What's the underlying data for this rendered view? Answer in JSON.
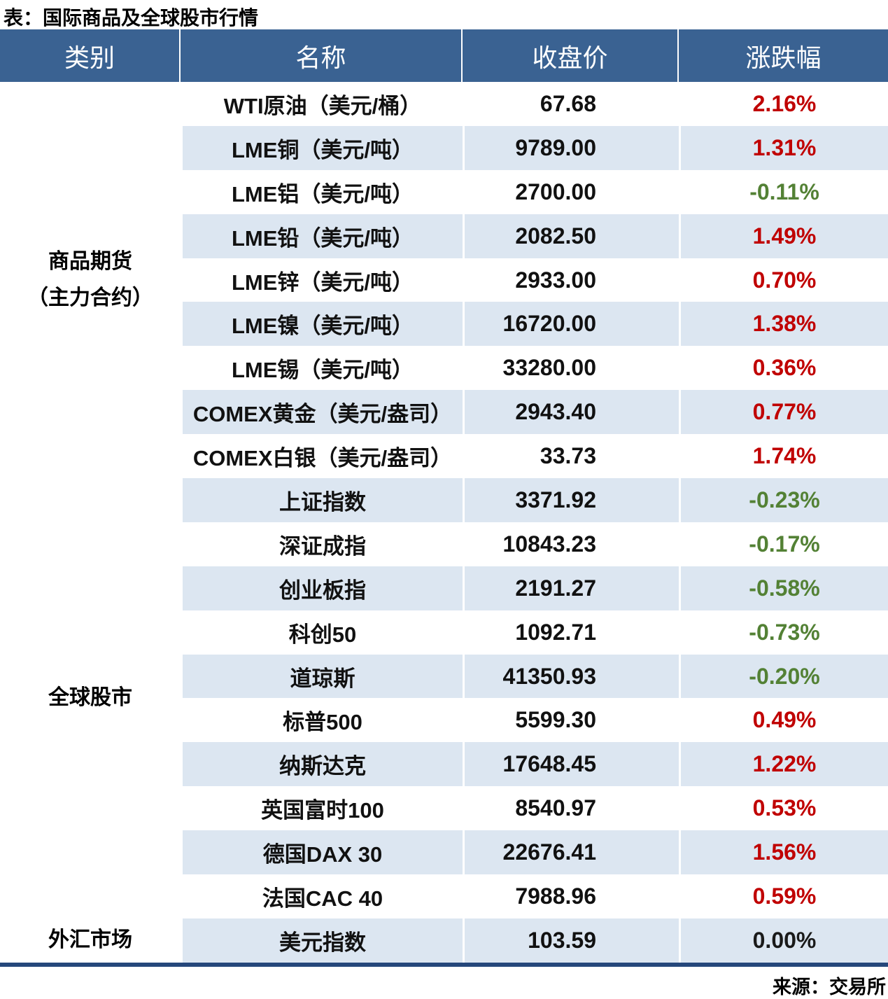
{
  "page": {
    "title": "表：国际商品及全球股市行情",
    "source": "来源：交易所"
  },
  "colors": {
    "header_bg": "#3A6292",
    "stripe": "#DCE6F1",
    "up": "#C00000",
    "down": "#538135",
    "flat": "#1A1A1A",
    "bottom_border": "#25477B",
    "section_divider": "#CBD7E8"
  },
  "table": {
    "headers": [
      "类别",
      "名称",
      "收盘价",
      "涨跌幅"
    ],
    "sections": [
      {
        "category_line1": "商品期货",
        "category_line2": "（主力合约）",
        "rows": [
          {
            "name": "WTI原油（美元/桶）",
            "close": "67.68",
            "change": "2.16%",
            "direction": "up"
          },
          {
            "name": "LME铜（美元/吨）",
            "close": "9789.00",
            "change": "1.31%",
            "direction": "up"
          },
          {
            "name": "LME铝（美元/吨）",
            "close": "2700.00",
            "change": "-0.11%",
            "direction": "down"
          },
          {
            "name": "LME铅（美元/吨）",
            "close": "2082.50",
            "change": "1.49%",
            "direction": "up"
          },
          {
            "name": "LME锌（美元/吨）",
            "close": "2933.00",
            "change": "0.70%",
            "direction": "up"
          },
          {
            "name": "LME镍（美元/吨）",
            "close": "16720.00",
            "change": "1.38%",
            "direction": "up"
          },
          {
            "name": "LME锡（美元/吨）",
            "close": "33280.00",
            "change": "0.36%",
            "direction": "up"
          },
          {
            "name": "COMEX黄金（美元/盎司）",
            "close": "2943.40",
            "change": "0.77%",
            "direction": "up"
          },
          {
            "name": "COMEX白银（美元/盎司）",
            "close": "33.73",
            "change": "1.74%",
            "direction": "up"
          }
        ]
      },
      {
        "category_line1": "全球股市",
        "category_line2": "",
        "rows": [
          {
            "name": "上证指数",
            "close": "3371.92",
            "change": "-0.23%",
            "direction": "down"
          },
          {
            "name": "深证成指",
            "close": "10843.23",
            "change": "-0.17%",
            "direction": "down"
          },
          {
            "name": "创业板指",
            "close": "2191.27",
            "change": "-0.58%",
            "direction": "down"
          },
          {
            "name": "科创50",
            "close": "1092.71",
            "change": "-0.73%",
            "direction": "down"
          },
          {
            "name": "道琼斯",
            "close": "41350.93",
            "change": "-0.20%",
            "direction": "down"
          },
          {
            "name": "标普500",
            "close": "5599.30",
            "change": "0.49%",
            "direction": "up"
          },
          {
            "name": "纳斯达克",
            "close": "17648.45",
            "change": "1.22%",
            "direction": "up"
          },
          {
            "name": "英国富时100",
            "close": "8540.97",
            "change": "0.53%",
            "direction": "up"
          },
          {
            "name": "德国DAX 30",
            "close": "22676.41",
            "change": "1.56%",
            "direction": "up"
          },
          {
            "name": "法国CAC 40",
            "close": "7988.96",
            "change": "0.59%",
            "direction": "up"
          }
        ]
      },
      {
        "category_line1": "外汇市场",
        "category_line2": "",
        "rows": [
          {
            "name": "美元指数",
            "close": "103.59",
            "change": "0.00%",
            "direction": "flat"
          }
        ]
      }
    ]
  },
  "chart_data": {
    "type": "table",
    "title": "表：国际商品及全球股市行情",
    "columns": [
      "类别",
      "名称",
      "收盘价",
      "涨跌幅"
    ],
    "rows": [
      [
        "商品期货（主力合约）",
        "WTI原油（美元/桶）",
        "67.68",
        "2.16%"
      ],
      [
        "商品期货（主力合约）",
        "LME铜（美元/吨）",
        "9789.00",
        "1.31%"
      ],
      [
        "商品期货（主力合约）",
        "LME铝（美元/吨）",
        "2700.00",
        "-0.11%"
      ],
      [
        "商品期货（主力合约）",
        "LME铅（美元/吨）",
        "2082.50",
        "1.49%"
      ],
      [
        "商品期货（主力合约）",
        "LME锌（美元/吨）",
        "2933.00",
        "0.70%"
      ],
      [
        "商品期货（主力合约）",
        "LME镍（美元/吨）",
        "16720.00",
        "1.38%"
      ],
      [
        "商品期货（主力合约）",
        "LME锡（美元/吨）",
        "33280.00",
        "0.36%"
      ],
      [
        "商品期货（主力合约）",
        "COMEX黄金（美元/盎司）",
        "2943.40",
        "0.77%"
      ],
      [
        "商品期货（主力合约）",
        "COMEX白银（美元/盎司）",
        "33.73",
        "1.74%"
      ],
      [
        "全球股市",
        "上证指数",
        "3371.92",
        "-0.23%"
      ],
      [
        "全球股市",
        "深证成指",
        "10843.23",
        "-0.17%"
      ],
      [
        "全球股市",
        "创业板指",
        "2191.27",
        "-0.58%"
      ],
      [
        "全球股市",
        "科创50",
        "1092.71",
        "-0.73%"
      ],
      [
        "全球股市",
        "道琼斯",
        "41350.93",
        "-0.20%"
      ],
      [
        "全球股市",
        "标普500",
        "5599.30",
        "0.49%"
      ],
      [
        "全球股市",
        "纳斯达克",
        "17648.45",
        "1.22%"
      ],
      [
        "全球股市",
        "英国富时100",
        "8540.97",
        "0.53%"
      ],
      [
        "全球股市",
        "德国DAX 30",
        "22676.41",
        "1.56%"
      ],
      [
        "全球股市",
        "法国CAC 40",
        "7988.96",
        "0.59%"
      ],
      [
        "外汇市场",
        "美元指数",
        "103.59",
        "0.00%"
      ]
    ],
    "value_color_legend": {
      "red": "rise",
      "green": "fall",
      "black": "flat"
    },
    "source": "来源：交易所"
  }
}
